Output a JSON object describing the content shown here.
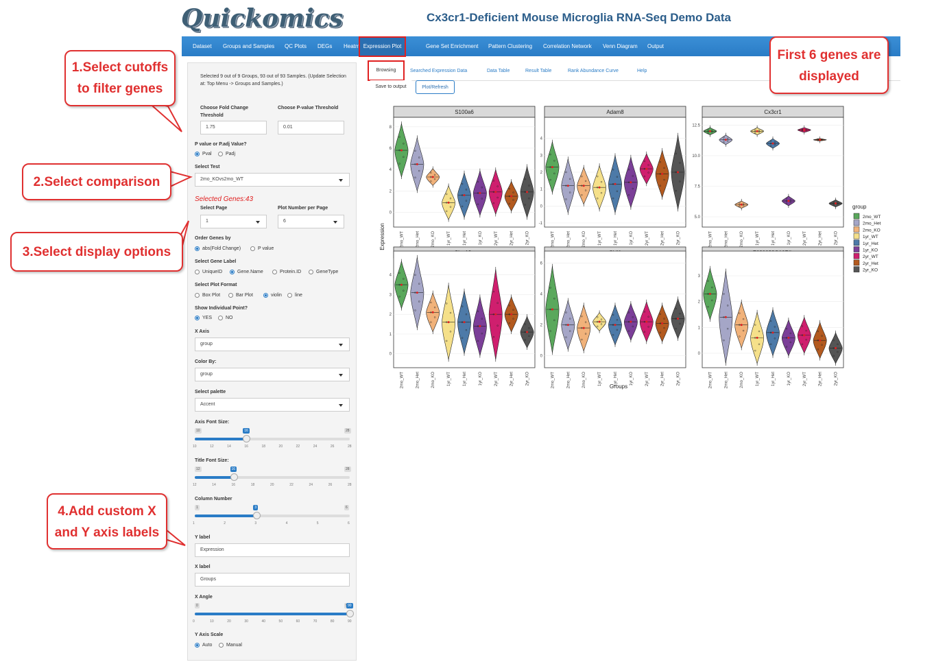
{
  "app": {
    "logo": "Quickomics",
    "title": "Cx3cr1-Deficient Mouse Microglia RNA-Seq Demo Data"
  },
  "nav": [
    "Dataset",
    "Groups and Samples",
    "QC Plots",
    "DEGs",
    "Heatmap",
    "Expression Plot",
    "Gene Set Enrichment",
    "Pattern Clustering",
    "Correlation Network",
    "Venn Diagram",
    "Output"
  ],
  "nav_active": "Expression Plot",
  "subtabs": [
    "Browsing",
    "Searched Expression Data",
    "Data Table",
    "Result Table",
    "Rank Abundance Curve",
    "Help"
  ],
  "buttons": {
    "save": "Save to output",
    "plot": "Plot/Refresh"
  },
  "sidebar": {
    "info": "Selected 9 out of 9 Groups, 93 out of 93 Samples. (Update Selection at: Top Menu -> Groups and Samples.)",
    "fc_label": "Choose Fold Change Threshold",
    "fc_value": "1.75",
    "pv_label": "Choose P-value Threshold",
    "pv_value": "0.01",
    "pval_type_label": "P value or P.adj Value?",
    "pval_opt1": "Pval",
    "pval_opt2": "Padj",
    "test_label": "Select Test",
    "test_value": "2mo_KOvs2mo_WT",
    "selected_genes": "Selected Genes:43",
    "page_label": "Select Page",
    "page_value": "1",
    "plotnum_label": "Plot Number per Page",
    "plotnum_value": "6",
    "order_label": "Order Genes by",
    "order_opt1": "abs(Fold Change)",
    "order_opt2": "P value",
    "genelabel_label": "Select Gene Label",
    "genelabel_opts": [
      "UniqueID",
      "Gene.Name",
      "Protein.ID",
      "GeneType"
    ],
    "format_label": "Select Plot Format",
    "format_opts": [
      "Box Plot",
      "Bar Plot",
      "violin",
      "line"
    ],
    "points_label": "Show Individual Point?",
    "points_opt1": "YES",
    "points_opt2": "NO",
    "xaxis_label": "X Axis",
    "xaxis_value": "group",
    "colorby_label": "Color By:",
    "colorby_value": "group",
    "palette_label": "Select palette",
    "palette_value": "Accent",
    "axisfont_label": "Axis Font Size:",
    "axisfont": {
      "min": "10",
      "max": "28",
      "value": "16",
      "ticks": [
        "10",
        "12",
        "14",
        "16",
        "18",
        "20",
        "22",
        "24",
        "26",
        "28"
      ],
      "fraction": 0.333
    },
    "titlefont_label": "Title Font Size:",
    "titlefont": {
      "min": "12",
      "max": "28",
      "value": "16",
      "ticks": [
        "12",
        "14",
        "16",
        "18",
        "20",
        "22",
        "24",
        "26",
        "28"
      ],
      "fraction": 0.25
    },
    "colnum_label": "Column Number",
    "colnum": {
      "min": "1",
      "max": "6",
      "value": "3",
      "ticks": [
        "1",
        "2",
        "3",
        "4",
        "5",
        "6"
      ],
      "fraction": 0.4
    },
    "ylabel_label": "Y label",
    "ylabel_value": "Expression",
    "xlabel_label": "X label",
    "xlabel_value": "Groups",
    "xangle_label": "X Angle",
    "xangle": {
      "min": "0",
      "max": "90",
      "value": "90",
      "ticks": [
        "0",
        "10",
        "20",
        "30",
        "40",
        "50",
        "60",
        "70",
        "80",
        "90"
      ],
      "fraction": 1.0
    },
    "yscale_label": "Y Axis Scale",
    "yscale_opt1": "Auto",
    "yscale_opt2": "Manual"
  },
  "annotations": {
    "a1": [
      "1.Select cutoffs",
      "to filter genes"
    ],
    "a2": [
      "2.Select comparison"
    ],
    "a3": [
      "3.Select display options"
    ],
    "a4": [
      "4.Add custom X",
      "and Y axis labels"
    ],
    "a5": [
      "First 6 genes are",
      "displayed"
    ]
  },
  "chart_data": {
    "type": "violin",
    "ylabel": "Expression",
    "xlabel": "Groups",
    "legend_title": "group",
    "legend_position": "right",
    "categories": [
      "2mo_WT",
      "2mo_Het",
      "2mo_KO",
      "1yr_WT",
      "1yr_Het",
      "1yr_KO",
      "2yr_WT",
      "2yr_Het",
      "2yr_KO"
    ],
    "colors": [
      "#5aa85c",
      "#a5a6c7",
      "#f1b27a",
      "#f5e08a",
      "#4d7aa8",
      "#7b3f98",
      "#cf1f6e",
      "#b35a1f",
      "#555555"
    ],
    "panels": [
      {
        "title": "S100a6",
        "ylim": [
          -1,
          8.5
        ],
        "yticks": [
          0,
          2,
          4,
          6,
          8
        ],
        "medians": [
          5.8,
          4.5,
          3.3,
          0.9,
          1.6,
          1.8,
          1.9,
          1.5,
          1.9
        ],
        "spread": [
          2.5,
          2.5,
          0.8,
          1.6,
          2.1,
          2.1,
          2.1,
          1.4,
          2.4
        ]
      },
      {
        "title": "Adam8",
        "ylim": [
          -1,
          5
        ],
        "yticks": [
          -1,
          0,
          1,
          2,
          3,
          4
        ],
        "medians": [
          2.3,
          1.2,
          1.2,
          1.1,
          1.3,
          1.4,
          2.2,
          1.9,
          2.0
        ],
        "spread": [
          1.5,
          1.6,
          1.1,
          1.3,
          1.7,
          1.5,
          0.9,
          1.4,
          2.2
        ]
      },
      {
        "title": "Cx3cr1",
        "ylim": [
          4.5,
          12.8
        ],
        "yticks": [
          5.0,
          7.5,
          10.0,
          12.5
        ],
        "medians": [
          12.0,
          11.3,
          6.0,
          12.0,
          11.0,
          6.3,
          12.1,
          11.3,
          6.1
        ],
        "spread": [
          0.3,
          0.4,
          0.3,
          0.3,
          0.4,
          0.4,
          0.2,
          0.1,
          0.3
        ]
      },
      {
        "title": "Clec12a",
        "ylim": [
          -0.5,
          5
        ],
        "yticks": [
          0,
          1,
          2,
          3,
          4
        ],
        "medians": [
          3.5,
          3.1,
          2.1,
          1.6,
          1.6,
          1.4,
          2.0,
          2.0,
          1.1
        ],
        "spread": [
          1.2,
          1.8,
          1.0,
          1.9,
          1.6,
          1.5,
          2.3,
          0.9,
          0.8
        ]
      },
      {
        "title": "Chil1",
        "ylim": [
          -0.5,
          6.5
        ],
        "yticks": [
          0,
          2,
          4,
          6
        ],
        "medians": [
          3.0,
          2.0,
          1.8,
          2.2,
          2.0,
          2.2,
          2.2,
          2.1,
          2.4
        ],
        "spread": [
          2.8,
          1.6,
          1.5,
          0.6,
          1.3,
          1.2,
          1.3,
          1.2,
          1.3
        ]
      },
      {
        "title": "F630028O10Rik",
        "ylim": [
          -0.4,
          3.8
        ],
        "yticks": [
          0,
          1,
          2,
          3
        ],
        "medians": [
          2.3,
          1.4,
          1.1,
          0.6,
          0.8,
          0.6,
          0.7,
          0.5,
          0.2
        ],
        "spread": [
          1.0,
          1.8,
          0.9,
          1.0,
          0.9,
          0.7,
          0.7,
          0.7,
          0.6
        ]
      }
    ]
  }
}
